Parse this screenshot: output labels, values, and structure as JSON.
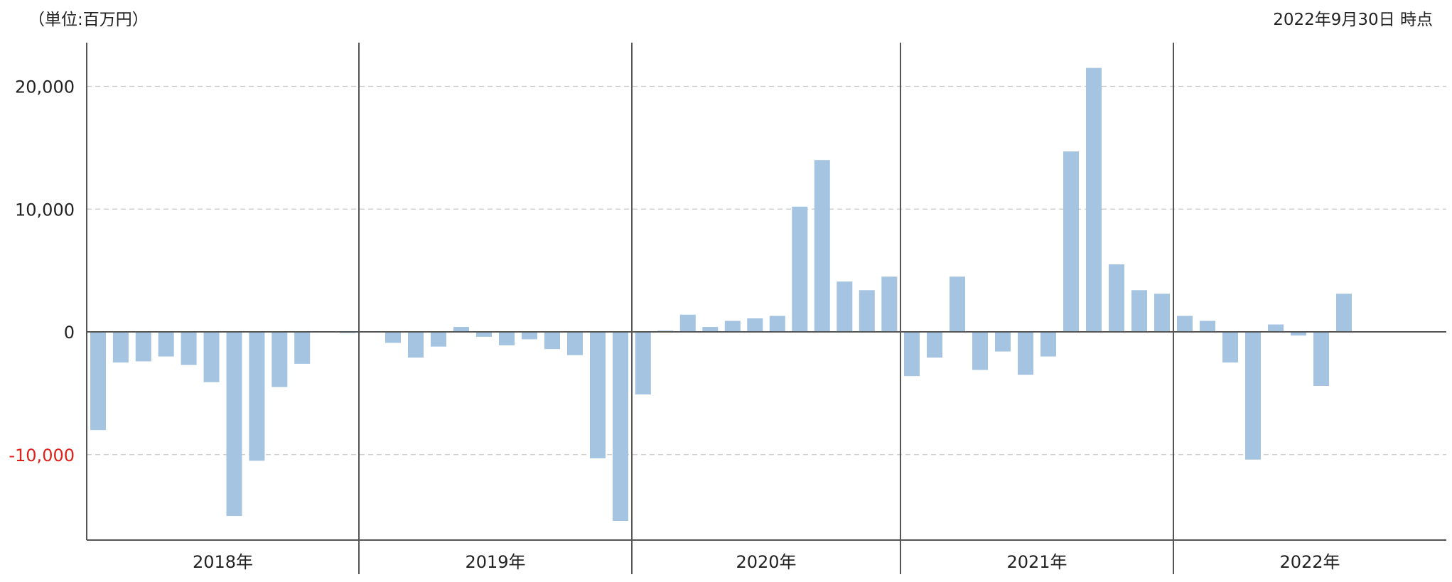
{
  "header": {
    "unit": "（単位:百万円）",
    "as_of": "2022年9月30日 時点"
  },
  "colors": {
    "bar": "#a4c4e2",
    "grid": "#c8c8c8",
    "axis": "#555555",
    "negative_tick": "#e0201a"
  },
  "chart_data": {
    "type": "bar",
    "title": "",
    "xlabel": "",
    "ylabel": "",
    "ylim": [
      -17000,
      23500
    ],
    "y_ticks": [
      {
        "value": -10000,
        "label": "-10,000"
      },
      {
        "value": 0,
        "label": "0"
      },
      {
        "value": 10000,
        "label": "10,000"
      },
      {
        "value": 20000,
        "label": "20,000"
      }
    ],
    "grid": true,
    "legend": "none",
    "groups": [
      {
        "label": "2018年",
        "values": [
          -8000,
          -2500,
          -2400,
          -2000,
          -2700,
          -4100,
          -15000,
          -10500,
          -4500,
          -2600,
          null,
          -100
        ]
      },
      {
        "label": "2019年",
        "values": [
          null,
          -900,
          -2100,
          -1200,
          400,
          -400,
          -1100,
          -600,
          -1400,
          -1900,
          -10300,
          -15400
        ]
      },
      {
        "label": "2020年",
        "values": [
          -5100,
          100,
          1400,
          400,
          900,
          1100,
          1300,
          10200,
          14000,
          4100,
          3400,
          4500
        ]
      },
      {
        "label": "2021年",
        "values": [
          -3600,
          -2100,
          4500,
          -3100,
          -1600,
          -3500,
          -2000,
          14700,
          21500,
          5500,
          3400,
          3100
        ]
      },
      {
        "label": "2022年",
        "values": [
          1300,
          900,
          -2500,
          -10400,
          600,
          -300,
          -4400,
          3100,
          null,
          null,
          null,
          null
        ]
      }
    ]
  }
}
